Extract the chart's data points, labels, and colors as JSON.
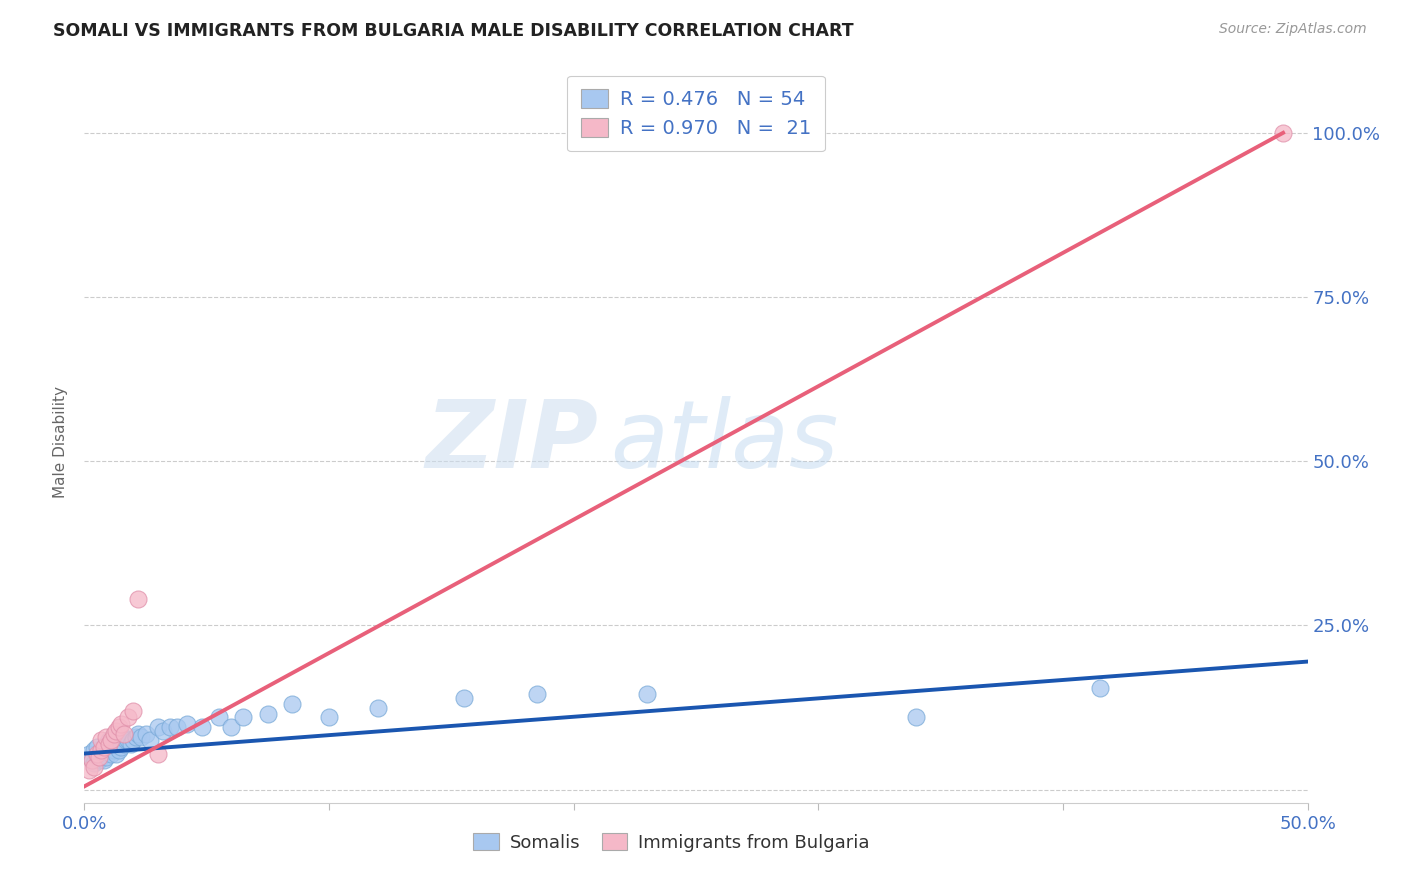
{
  "title": "SOMALI VS IMMIGRANTS FROM BULGARIA MALE DISABILITY CORRELATION CHART",
  "source": "Source: ZipAtlas.com",
  "ylabel_label": "Male Disability",
  "xlim": [
    0.0,
    0.5
  ],
  "ylim": [
    -0.02,
    1.08
  ],
  "ytick_positions": [
    0.0,
    0.25,
    0.5,
    0.75,
    1.0
  ],
  "yticklabels_right": [
    "",
    "25.0%",
    "50.0%",
    "75.0%",
    "100.0%"
  ],
  "somali_R": 0.476,
  "somali_N": 54,
  "bulgaria_R": 0.97,
  "bulgaria_N": 21,
  "somali_color": "#a8c8f0",
  "bulgaria_color": "#f5b8c8",
  "somali_line_color": "#1a56b0",
  "bulgaria_line_color": "#e8607a",
  "legend_label_somali": "Somalis",
  "legend_label_bulgaria": "Immigrants from Bulgaria",
  "watermark_zip": "ZIP",
  "watermark_atlas": "atlas",
  "somali_x": [
    0.002,
    0.003,
    0.004,
    0.004,
    0.005,
    0.005,
    0.006,
    0.006,
    0.007,
    0.007,
    0.008,
    0.008,
    0.009,
    0.009,
    0.01,
    0.01,
    0.011,
    0.011,
    0.012,
    0.012,
    0.013,
    0.013,
    0.014,
    0.014,
    0.015,
    0.015,
    0.016,
    0.017,
    0.018,
    0.019,
    0.02,
    0.021,
    0.022,
    0.023,
    0.025,
    0.027,
    0.03,
    0.032,
    0.035,
    0.038,
    0.042,
    0.048,
    0.055,
    0.06,
    0.065,
    0.075,
    0.085,
    0.1,
    0.12,
    0.155,
    0.185,
    0.23,
    0.34,
    0.415
  ],
  "somali_y": [
    0.055,
    0.045,
    0.06,
    0.04,
    0.05,
    0.065,
    0.045,
    0.055,
    0.06,
    0.05,
    0.065,
    0.045,
    0.07,
    0.05,
    0.06,
    0.075,
    0.055,
    0.065,
    0.07,
    0.06,
    0.055,
    0.075,
    0.06,
    0.08,
    0.065,
    0.085,
    0.07,
    0.075,
    0.075,
    0.07,
    0.075,
    0.08,
    0.085,
    0.08,
    0.085,
    0.075,
    0.095,
    0.09,
    0.095,
    0.095,
    0.1,
    0.095,
    0.11,
    0.095,
    0.11,
    0.115,
    0.13,
    0.11,
    0.125,
    0.14,
    0.145,
    0.145,
    0.11,
    0.155
  ],
  "bulgaria_x": [
    0.002,
    0.003,
    0.004,
    0.005,
    0.006,
    0.007,
    0.007,
    0.008,
    0.009,
    0.01,
    0.011,
    0.012,
    0.013,
    0.014,
    0.015,
    0.016,
    0.018,
    0.02,
    0.022,
    0.03,
    0.49
  ],
  "bulgaria_y": [
    0.03,
    0.045,
    0.035,
    0.055,
    0.05,
    0.06,
    0.075,
    0.065,
    0.08,
    0.07,
    0.075,
    0.085,
    0.09,
    0.095,
    0.1,
    0.085,
    0.11,
    0.12,
    0.29,
    0.055,
    1.0
  ],
  "somali_line_x0": 0.0,
  "somali_line_x1": 0.5,
  "somali_line_y0": 0.055,
  "somali_line_y1": 0.195,
  "bulgaria_line_x0": 0.0,
  "bulgaria_line_x1": 0.49,
  "bulgaria_line_y0": 0.005,
  "bulgaria_line_y1": 1.0
}
